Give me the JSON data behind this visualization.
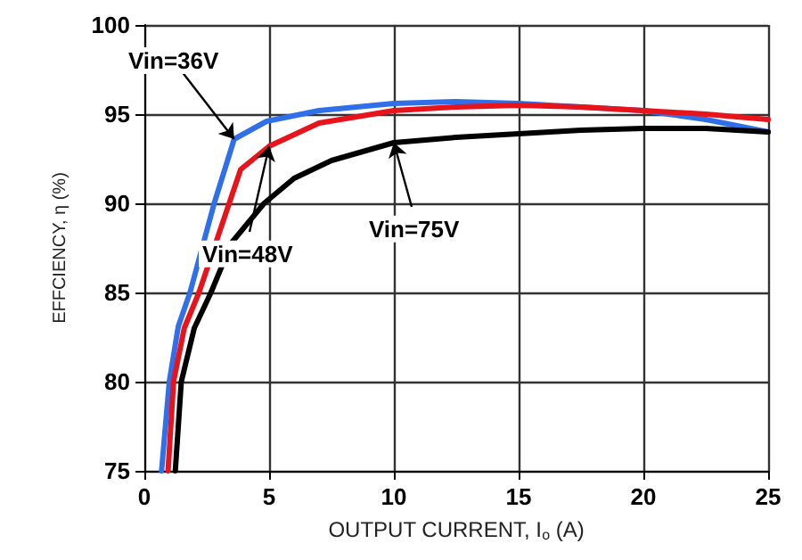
{
  "chart_data": {
    "type": "line",
    "xlabel": "OUTPUT CURRENT, I$_{o}$ (A)",
    "ylabel": "EFFCIENCY, η (%)",
    "xlim": [
      0,
      25
    ],
    "xticks": [
      0,
      5,
      10,
      15,
      20,
      25
    ],
    "ylim": [
      75,
      100
    ],
    "yticks": [
      75,
      80,
      85,
      90,
      95,
      100
    ],
    "grid": true,
    "legend": false,
    "marker": "none",
    "line_style": "solid",
    "series": [
      {
        "name": "Vin=36V",
        "color": "#2f6fe8",
        "x": [
          0.69,
          1.0,
          1.36,
          1.83,
          2.8,
          3.6,
          4.9,
          7,
          10,
          12.5,
          15,
          17.5,
          20,
          22.5,
          25
        ],
        "values": [
          75,
          80,
          83.1,
          85,
          90,
          93.6,
          94.6,
          95.2,
          95.6,
          95.7,
          95.6,
          95.4,
          95.2,
          94.7,
          94.0
        ]
      },
      {
        "name": "Vin=48V",
        "color": "#e8141c",
        "x": [
          0.95,
          1.17,
          1.6,
          2.19,
          3.4,
          3.86,
          5,
          7,
          10,
          12.5,
          15,
          17.5,
          20,
          22.5,
          25
        ],
        "values": [
          75,
          80,
          83,
          85,
          90,
          91.9,
          93.2,
          94.5,
          95.2,
          95.4,
          95.5,
          95.4,
          95.2,
          95.0,
          94.7
        ]
      },
      {
        "name": "Vin=75V",
        "color": "#000000",
        "x": [
          1.24,
          1.48,
          2,
          2.67,
          3.5,
          4.8,
          6,
          7.5,
          10,
          12.5,
          15,
          17.5,
          20,
          22.5,
          25
        ],
        "values": [
          75,
          80,
          83,
          85,
          87.8,
          90,
          91.4,
          92.4,
          93.4,
          93.7,
          93.9,
          94.1,
          94.2,
          94.2,
          94.0
        ]
      }
    ]
  }
}
